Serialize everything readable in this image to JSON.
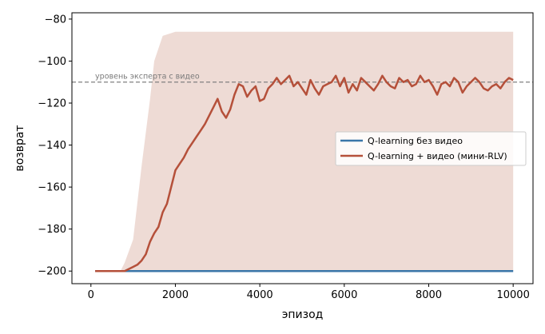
{
  "chart_data": {
    "type": "line",
    "title": "",
    "xlabel": "эпизод",
    "ylabel": "возврат",
    "xlim": [
      -450,
      10470
    ],
    "ylim": [
      -206,
      -77
    ],
    "xticks": [
      0,
      2000,
      4000,
      6000,
      8000,
      10000
    ],
    "yticks": [
      -200,
      -180,
      -160,
      -140,
      -120,
      -100,
      -80
    ],
    "xtick_labels": [
      "0",
      "2000",
      "4000",
      "6000",
      "8000",
      "10000"
    ],
    "ytick_labels": [
      "−200",
      "−180",
      "−160",
      "−140",
      "−120",
      "−100",
      "−80"
    ],
    "grid": false,
    "legend_position": "center-right",
    "reference_line": {
      "y": -110,
      "label": "уровень эксперта с видео",
      "color": "#808080",
      "style": "dashed"
    },
    "band": {
      "series": "Q-learning + видео (мини-RLV)",
      "color": "#e8cfc7",
      "x": [
        100,
        700,
        800,
        1000,
        1200,
        1400,
        1500,
        1700,
        2000,
        2500,
        3000,
        3500,
        4000,
        5000,
        6000,
        7000,
        8000,
        9000,
        10000
      ],
      "lower": [
        -200,
        -200,
        -200,
        -200,
        -200,
        -200,
        -200,
        -200,
        -200,
        -200,
        -200,
        -200,
        -200,
        -200,
        -200,
        -200,
        -200,
        -200,
        -200
      ],
      "upper": [
        -200,
        -200,
        -196,
        -185,
        -150,
        -118,
        -100,
        -88,
        -86,
        -86,
        -86,
        -86,
        -86,
        -86,
        -86,
        -86,
        -86,
        -86,
        -86
      ]
    },
    "series": [
      {
        "name": "Q-learning без видео",
        "color": "#3a76a8",
        "x": [
          100,
          10000
        ],
        "y": [
          -200,
          -200
        ]
      },
      {
        "name": "Q-learning + видео (мини-RLV)",
        "color": "#b5503a",
        "x": [
          100,
          800,
          900,
          1000,
          1100,
          1200,
          1300,
          1400,
          1500,
          1600,
          1700,
          1800,
          1900,
          2000,
          2100,
          2200,
          2300,
          2400,
          2500,
          2600,
          2700,
          2800,
          2900,
          3000,
          3100,
          3200,
          3300,
          3400,
          3500,
          3600,
          3700,
          3800,
          3900,
          4000,
          4100,
          4200,
          4300,
          4400,
          4500,
          4600,
          4700,
          4800,
          4900,
          5000,
          5100,
          5200,
          5300,
          5400,
          5500,
          5600,
          5700,
          5800,
          5900,
          6000,
          6100,
          6200,
          6300,
          6400,
          6500,
          6600,
          6700,
          6800,
          6900,
          7000,
          7100,
          7200,
          7300,
          7400,
          7500,
          7600,
          7700,
          7800,
          7900,
          8000,
          8100,
          8200,
          8300,
          8400,
          8500,
          8600,
          8700,
          8800,
          8900,
          9000,
          9100,
          9200,
          9300,
          9400,
          9500,
          9600,
          9700,
          9800,
          9900,
          10000
        ],
        "y": [
          -200,
          -200,
          -199,
          -198,
          -197,
          -195,
          -192,
          -186,
          -182,
          -179,
          -172,
          -168,
          -160,
          -152,
          -149,
          -146,
          -142,
          -139,
          -136,
          -133,
          -130,
          -126,
          -122,
          -118,
          -124,
          -127,
          -123,
          -116,
          -111,
          -112,
          -117,
          -114,
          -112,
          -119,
          -118,
          -113,
          -111,
          -108,
          -111,
          -109,
          -107,
          -112,
          -110,
          -113,
          -116,
          -109,
          -113,
          -116,
          -112,
          -111,
          -110,
          -107,
          -112,
          -108,
          -115,
          -111,
          -114,
          -108,
          -110,
          -112,
          -114,
          -111,
          -107,
          -110,
          -112,
          -113,
          -108,
          -110,
          -109,
          -112,
          -111,
          -107,
          -110,
          -109,
          -112,
          -116,
          -111,
          -110,
          -112,
          -108,
          -110,
          -115,
          -112,
          -110,
          -108,
          -110,
          -113,
          -114,
          -112,
          -111,
          -113,
          -110,
          -108,
          -109
        ]
      }
    ]
  }
}
